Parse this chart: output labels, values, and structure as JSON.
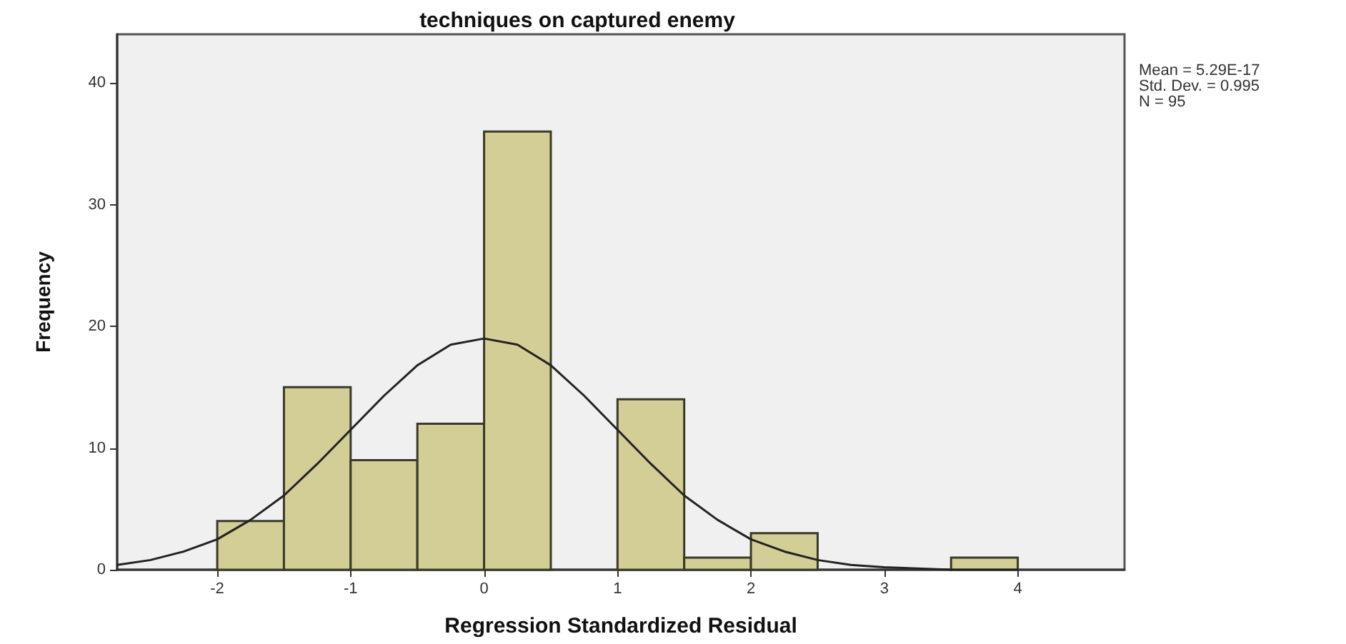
{
  "chart_data": {
    "type": "histogram",
    "title": "techniques on captured enemy",
    "xlabel": "Regression Standardized Residual",
    "ylabel": "Frequency",
    "annotations": [
      "Mean = 5.29E-17",
      "Std. Dev. = 0.995",
      "N = 95"
    ],
    "bins": [
      -2,
      -1.5,
      -1,
      -0.5,
      0,
      0.5,
      1,
      1.5,
      2,
      2.5,
      3,
      3.5,
      4
    ],
    "values": [
      4,
      15,
      9,
      12,
      36,
      0,
      14,
      1,
      3,
      0,
      0,
      1
    ],
    "color": "#d3cd96",
    "series": [
      {
        "type": "line",
        "color": "#222222",
        "marker": "none",
        "line_style": "solid",
        "x": [
          -2.75,
          -2.5,
          -2.25,
          -2,
          -1.75,
          -1.5,
          -1.25,
          -1,
          -0.75,
          -0.5,
          -0.25,
          0,
          0.25,
          0.5,
          0.75,
          1,
          1.25,
          1.5,
          1.75,
          2,
          2.25,
          2.5,
          2.75,
          3,
          3.25,
          3.5,
          3.75,
          4
        ],
        "values": [
          0.4,
          0.8,
          1.5,
          2.5,
          4.1,
          6.1,
          8.7,
          11.5,
          14.3,
          16.8,
          18.5,
          19,
          18.5,
          16.8,
          14.3,
          11.5,
          8.7,
          6.1,
          4.1,
          2.5,
          1.5,
          0.8,
          0.4,
          0.2,
          0.1,
          0,
          0,
          0
        ]
      }
    ],
    "xlim": [
      -2.75,
      4.8
    ],
    "xticks": [
      -2,
      -1,
      0,
      1,
      2,
      3,
      4
    ],
    "ylim": [
      0,
      44
    ],
    "yticks": [
      0,
      10,
      20,
      30,
      40
    ],
    "grid": false,
    "legend": false
  }
}
